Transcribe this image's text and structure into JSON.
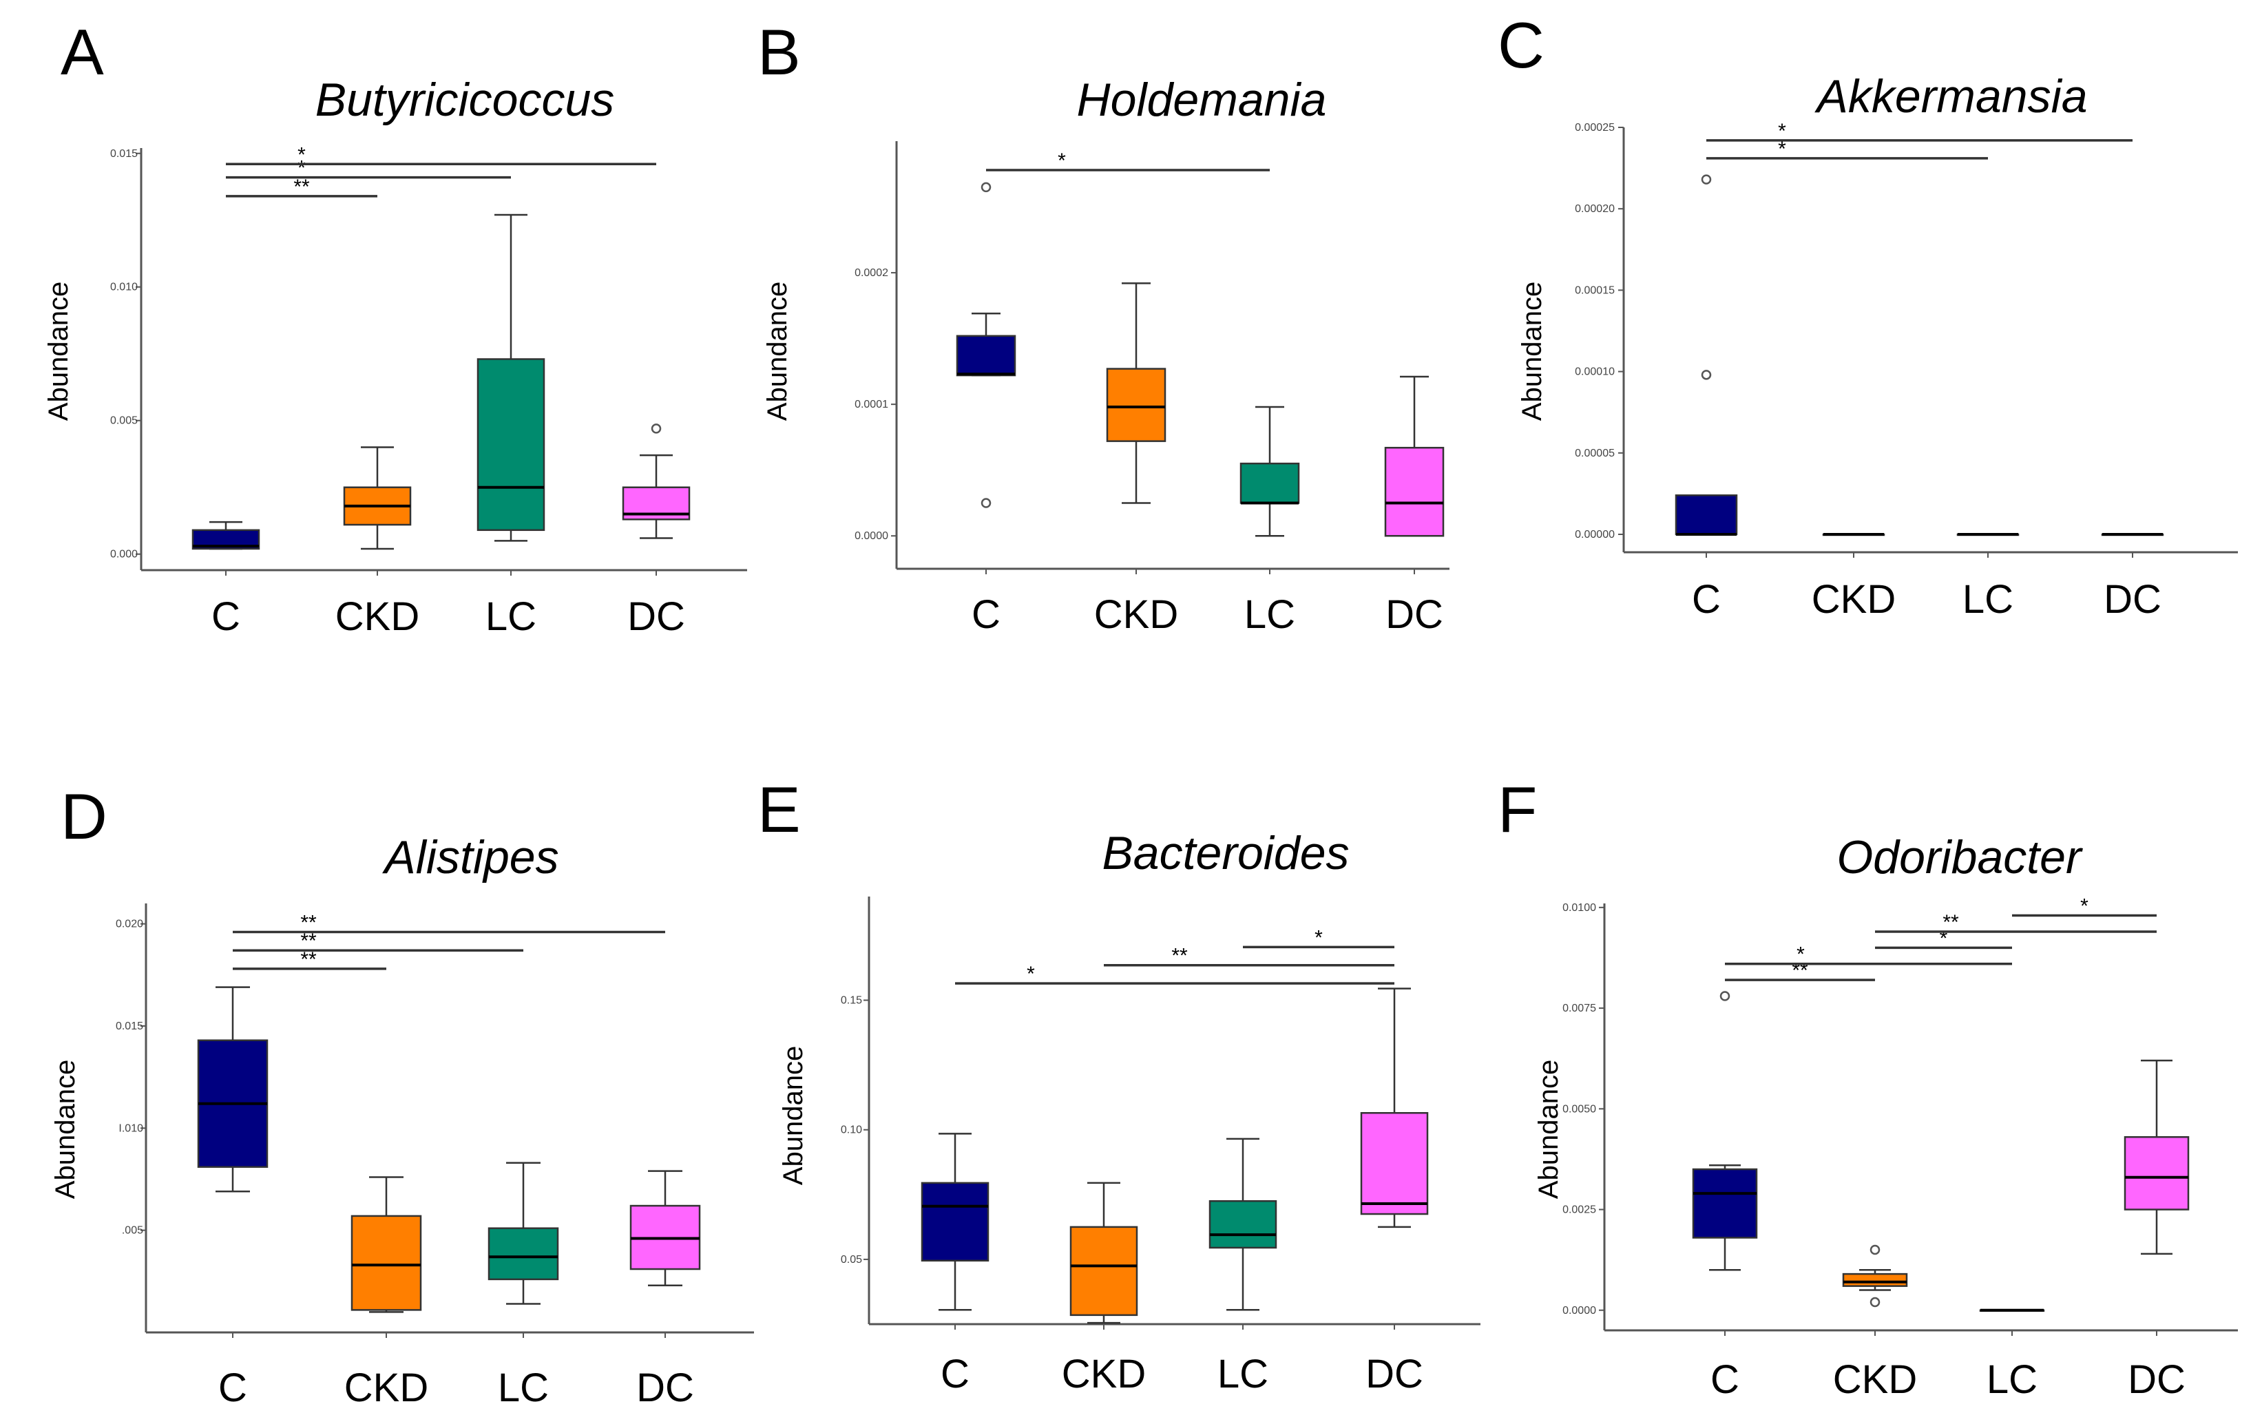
{
  "colors": {
    "C": "#000080",
    "CKD": "#FF7F00",
    "LC": "#008B6E",
    "DC": "#FF66FF"
  },
  "chart_data": [
    {
      "panel": "A",
      "type": "box",
      "title": "Butyricicoccus",
      "ylabel": "Abundance",
      "ylim": [
        -0.0006,
        0.0152
      ],
      "yticks": [
        0.0,
        0.005,
        0.01,
        0.015
      ],
      "ytick_labels": [
        "0.000",
        "0.005",
        "0.010",
        "0.015"
      ],
      "categories": [
        "C",
        "CKD",
        "LC",
        "DC"
      ],
      "boxes": [
        {
          "group": "C",
          "min": 0.0002,
          "q1": 0.0002,
          "median": 0.0003,
          "q3": 0.0009,
          "max": 0.0012,
          "outliers": []
        },
        {
          "group": "CKD",
          "min": 0.0002,
          "q1": 0.0011,
          "median": 0.0018,
          "q3": 0.0025,
          "max": 0.004,
          "outliers": []
        },
        {
          "group": "LC",
          "min": 0.0005,
          "q1": 0.0009,
          "median": 0.0025,
          "q3": 0.0073,
          "max": 0.0127,
          "outliers": []
        },
        {
          "group": "DC",
          "min": 0.0006,
          "q1": 0.0013,
          "median": 0.0015,
          "q3": 0.0025,
          "max": 0.0037,
          "outliers": [
            0.0047
          ]
        }
      ],
      "significance": [
        {
          "from": "C",
          "to": "CKD",
          "label": "**",
          "y": 0.0134
        },
        {
          "from": "C",
          "to": "LC",
          "label": "*",
          "y": 0.0141
        },
        {
          "from": "C",
          "to": "DC",
          "label": "*",
          "y": 0.0146
        }
      ]
    },
    {
      "panel": "B",
      "type": "box",
      "title": "Holdemania",
      "ylabel": "Abundance",
      "ylim": [
        -2.5e-05,
        0.0003
      ],
      "yticks": [
        0.0,
        0.0001,
        0.0002
      ],
      "ytick_labels": [
        "0.0000",
        "0.0001",
        "0.0002"
      ],
      "categories": [
        "C",
        "CKD",
        "LC",
        "DC"
      ],
      "boxes": [
        {
          "group": "C",
          "min": 0.000122,
          "q1": 0.000122,
          "median": 0.000123,
          "q3": 0.000152,
          "max": 0.000169,
          "outliers": [
            0.000265,
            2.5e-05
          ]
        },
        {
          "group": "CKD",
          "min": 2.5e-05,
          "q1": 7.2e-05,
          "median": 9.8e-05,
          "q3": 0.000127,
          "max": 0.000192,
          "outliers": []
        },
        {
          "group": "LC",
          "min": 0.0,
          "q1": 2.5e-05,
          "median": 2.5e-05,
          "q3": 5.5e-05,
          "max": 9.8e-05,
          "outliers": []
        },
        {
          "group": "DC",
          "min": 0.0,
          "q1": 0.0,
          "median": 2.5e-05,
          "q3": 6.7e-05,
          "max": 0.000121,
          "outliers": []
        }
      ],
      "significance": [
        {
          "from": "C",
          "to": "LC",
          "label": "*",
          "y": 0.000278
        }
      ]
    },
    {
      "panel": "C",
      "type": "box",
      "title": "Akkermansia",
      "ylabel": "Abundance",
      "ylim": [
        -1.1e-05,
        0.00025
      ],
      "yticks": [
        0.0,
        5e-05,
        0.0001,
        0.00015,
        0.0002,
        0.00025
      ],
      "ytick_labels": [
        "0.00000",
        "0.00005",
        "0.00010",
        "0.00015",
        "0.00020",
        "0.00025"
      ],
      "categories": [
        "C",
        "CKD",
        "LC",
        "DC"
      ],
      "boxes": [
        {
          "group": "C",
          "min": 0.0,
          "q1": 0.0,
          "median": 0.0,
          "q3": 2.4e-05,
          "max": 2.4e-05,
          "outliers": [
            0.000218,
            9.8e-05
          ]
        },
        {
          "group": "CKD",
          "min": 0.0,
          "q1": 0.0,
          "median": 0.0,
          "q3": 0.0,
          "max": 0.0,
          "outliers": []
        },
        {
          "group": "LC",
          "min": 0.0,
          "q1": 0.0,
          "median": 0.0,
          "q3": 0.0,
          "max": 0.0,
          "outliers": []
        },
        {
          "group": "DC",
          "min": 0.0,
          "q1": 0.0,
          "median": 0.0,
          "q3": 0.0,
          "max": 0.0,
          "outliers": []
        }
      ],
      "significance": [
        {
          "from": "C",
          "to": "LC",
          "label": "*",
          "y": 0.000231
        },
        {
          "from": "C",
          "to": "DC",
          "label": "*",
          "y": 0.000242
        }
      ]
    },
    {
      "panel": "D",
      "type": "box",
      "title": "Alistipes",
      "ylabel": "Abundance",
      "ylim": [
        0.0,
        0.021
      ],
      "yticks": [
        0.005,
        0.01,
        0.015,
        0.02
      ],
      "ytick_labels": [
        ".005",
        "I.010",
        "0.015",
        "0.020"
      ],
      "categories": [
        "C",
        "CKD",
        "LC",
        "DC"
      ],
      "boxes": [
        {
          "group": "C",
          "min": 0.0069,
          "q1": 0.0081,
          "median": 0.0112,
          "q3": 0.0143,
          "max": 0.0169,
          "outliers": []
        },
        {
          "group": "CKD",
          "min": 0.001,
          "q1": 0.0011,
          "median": 0.0033,
          "q3": 0.0057,
          "max": 0.0076,
          "outliers": []
        },
        {
          "group": "LC",
          "min": 0.0014,
          "q1": 0.0026,
          "median": 0.0037,
          "q3": 0.0051,
          "max": 0.0083,
          "outliers": []
        },
        {
          "group": "DC",
          "min": 0.0023,
          "q1": 0.0031,
          "median": 0.0046,
          "q3": 0.0062,
          "max": 0.0079,
          "outliers": []
        }
      ],
      "significance": [
        {
          "from": "C",
          "to": "CKD",
          "label": "**",
          "y": 0.0178
        },
        {
          "from": "C",
          "to": "LC",
          "label": "**",
          "y": 0.0187
        },
        {
          "from": "C",
          "to": "DC",
          "label": "**",
          "y": 0.0196
        }
      ]
    },
    {
      "panel": "E",
      "type": "box",
      "title": "Bacteroides",
      "ylabel": "Abundance",
      "ylim": [
        0.025,
        0.19
      ],
      "yticks": [
        0.05,
        0.1,
        0.15
      ],
      "ytick_labels": [
        "0.05",
        "0.10",
        "0.15"
      ],
      "categories": [
        "C",
        "CKD",
        "LC",
        "DC"
      ],
      "boxes": [
        {
          "group": "C",
          "min": 0.0305,
          "q1": 0.0495,
          "median": 0.0705,
          "q3": 0.0795,
          "max": 0.0985,
          "outliers": []
        },
        {
          "group": "CKD",
          "min": 0.0255,
          "q1": 0.0285,
          "median": 0.0475,
          "q3": 0.0625,
          "max": 0.0795,
          "outliers": []
        },
        {
          "group": "LC",
          "min": 0.0305,
          "q1": 0.0545,
          "median": 0.0595,
          "q3": 0.0725,
          "max": 0.0965,
          "outliers": []
        },
        {
          "group": "DC",
          "min": 0.0625,
          "q1": 0.0675,
          "median": 0.0715,
          "q3": 0.1065,
          "max": 0.1545,
          "outliers": []
        }
      ],
      "significance": [
        {
          "from": "C",
          "to": "DC",
          "label": "*",
          "y": 0.1565
        },
        {
          "from": "CKD",
          "to": "DC",
          "label": "**",
          "y": 0.1635
        },
        {
          "from": "LC",
          "to": "DC",
          "label": "*",
          "y": 0.1705
        }
      ]
    },
    {
      "panel": "F",
      "type": "box",
      "title": "Odoribacter",
      "ylabel": "Abundance",
      "ylim": [
        -0.0005,
        0.0101
      ],
      "yticks": [
        0.0,
        0.0025,
        0.005,
        0.0075,
        0.01
      ],
      "ytick_labels": [
        "0.0000",
        "0.0025",
        "0.0050",
        "0.0075",
        "0.0100"
      ],
      "categories": [
        "C",
        "CKD",
        "LC",
        "DC"
      ],
      "boxes": [
        {
          "group": "C",
          "min": 0.001,
          "q1": 0.0018,
          "median": 0.0029,
          "q3": 0.0035,
          "max": 0.0036,
          "outliers": [
            0.0078
          ]
        },
        {
          "group": "CKD",
          "min": 0.0005,
          "q1": 0.0006,
          "median": 0.0007,
          "q3": 0.0009,
          "max": 0.001,
          "outliers": [
            0.0015,
            0.0002
          ]
        },
        {
          "group": "LC",
          "min": 0.0,
          "q1": 0.0,
          "median": 0.0,
          "q3": 0.0,
          "max": 0.0,
          "outliers": []
        },
        {
          "group": "DC",
          "min": 0.0014,
          "q1": 0.0025,
          "median": 0.0033,
          "q3": 0.0043,
          "max": 0.0062,
          "outliers": []
        }
      ],
      "significance": [
        {
          "from": "C",
          "to": "CKD",
          "label": "**",
          "y": 0.0082
        },
        {
          "from": "C",
          "to": "LC",
          "label": "*",
          "y": 0.0086
        },
        {
          "from": "CKD",
          "to": "LC",
          "label": "*",
          "y": 0.009
        },
        {
          "from": "CKD",
          "to": "DC",
          "label": "**",
          "y": 0.0094
        },
        {
          "from": "LC",
          "to": "DC",
          "label": "*",
          "y": 0.0098
        }
      ]
    }
  ]
}
